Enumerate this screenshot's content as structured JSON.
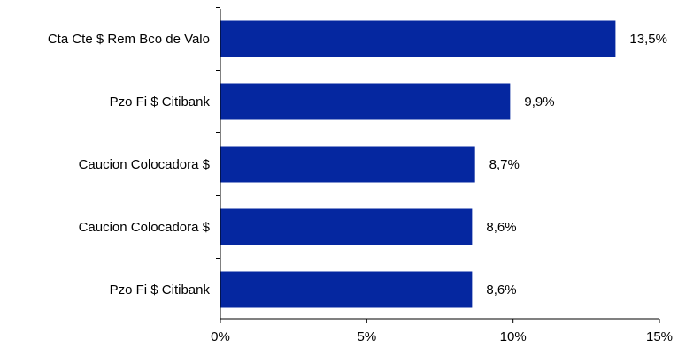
{
  "chart_data": {
    "type": "bar",
    "orientation": "horizontal",
    "categories": [
      "Cta Cte $ Rem Bco de Valo",
      "Pzo Fi $ Citibank",
      "Caucion Colocadora $",
      "Caucion Colocadora $",
      "Pzo Fi $ Citibank"
    ],
    "values": [
      13.5,
      9.9,
      8.7,
      8.6,
      8.6
    ],
    "value_labels": [
      "13,5%",
      "9,9%",
      "8,7%",
      "8,6%",
      "8,6%"
    ],
    "xlim": [
      0,
      15
    ],
    "xticks": [
      0,
      5,
      10,
      15
    ],
    "xtick_labels": [
      "0%",
      "5%",
      "10%",
      "15%"
    ],
    "title": "",
    "xlabel": "",
    "ylabel": "",
    "grid": false,
    "legend": "none",
    "bar_color": "#0527A0"
  }
}
